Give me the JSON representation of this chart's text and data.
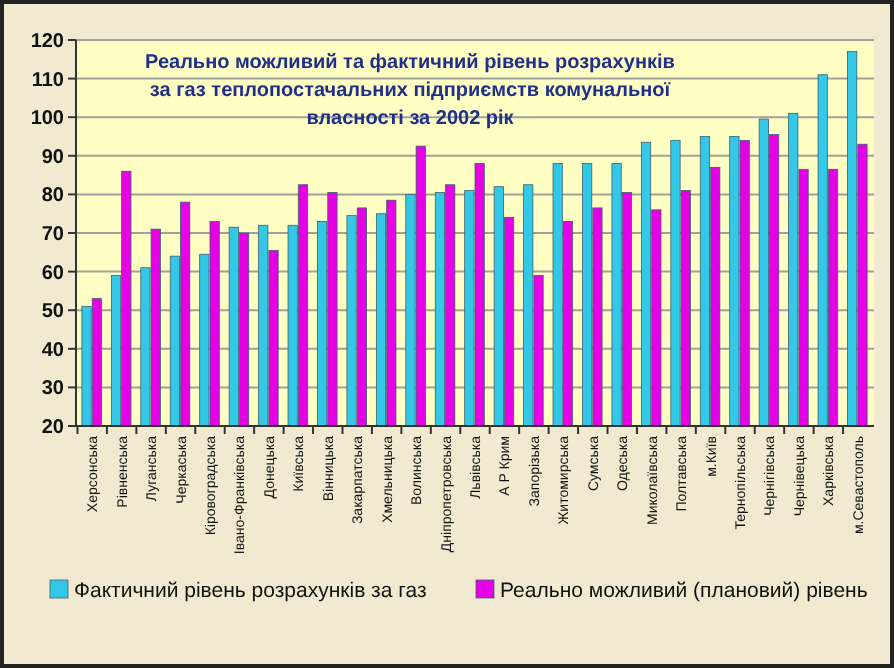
{
  "chart_data": {
    "type": "bar",
    "title": "Реально можливий та фактичний рівень розрахунків за газ теплопостачальних підприємств комунальної власності за 2002 рік",
    "categories": [
      "Херсонська",
      "Рівненська",
      "Луганська",
      "Черкаська",
      "Кіровоградська",
      "Івано-Франківська",
      "Донецька",
      "Київська",
      "Вінницька",
      "Закарпатська",
      "Хмельницька",
      "Волинська",
      "Дніпропетровська",
      "Львівська",
      "А Р Крим",
      "Запорізька",
      "Житомирська",
      "Сумська",
      "Одеська",
      "Миколаївська",
      "Полтавська",
      "м.Київ",
      "Тернопільська",
      "Чернігівська",
      "Чернівецька",
      "Харківська",
      "м.Севастополь"
    ],
    "series": [
      {
        "name": "Фактичний рівень розрахунків за газ",
        "color": "#33c8e8",
        "values": [
          51,
          59,
          61,
          64,
          64.5,
          71.5,
          72,
          72,
          73,
          74.5,
          75,
          80,
          80.5,
          81,
          82,
          82.5,
          88,
          88,
          88,
          93.5,
          94,
          95,
          95,
          99.5,
          101,
          111,
          117
        ]
      },
      {
        "name": "Реально можливий (плановий) рівень",
        "color": "#e600e6",
        "values": [
          53,
          86,
          71,
          78,
          73,
          70,
          65.5,
          82.5,
          80.5,
          76.5,
          78.5,
          92.5,
          82.5,
          88,
          74,
          59,
          73,
          76.5,
          80.5,
          76,
          81,
          87,
          94,
          95.5,
          86.5,
          86.5,
          93
        ]
      }
    ],
    "ylim": [
      20,
      120
    ],
    "yticks": [
      20,
      30,
      40,
      50,
      60,
      70,
      80,
      90,
      100,
      110,
      120
    ],
    "grid": "y",
    "legend": "bottom"
  }
}
